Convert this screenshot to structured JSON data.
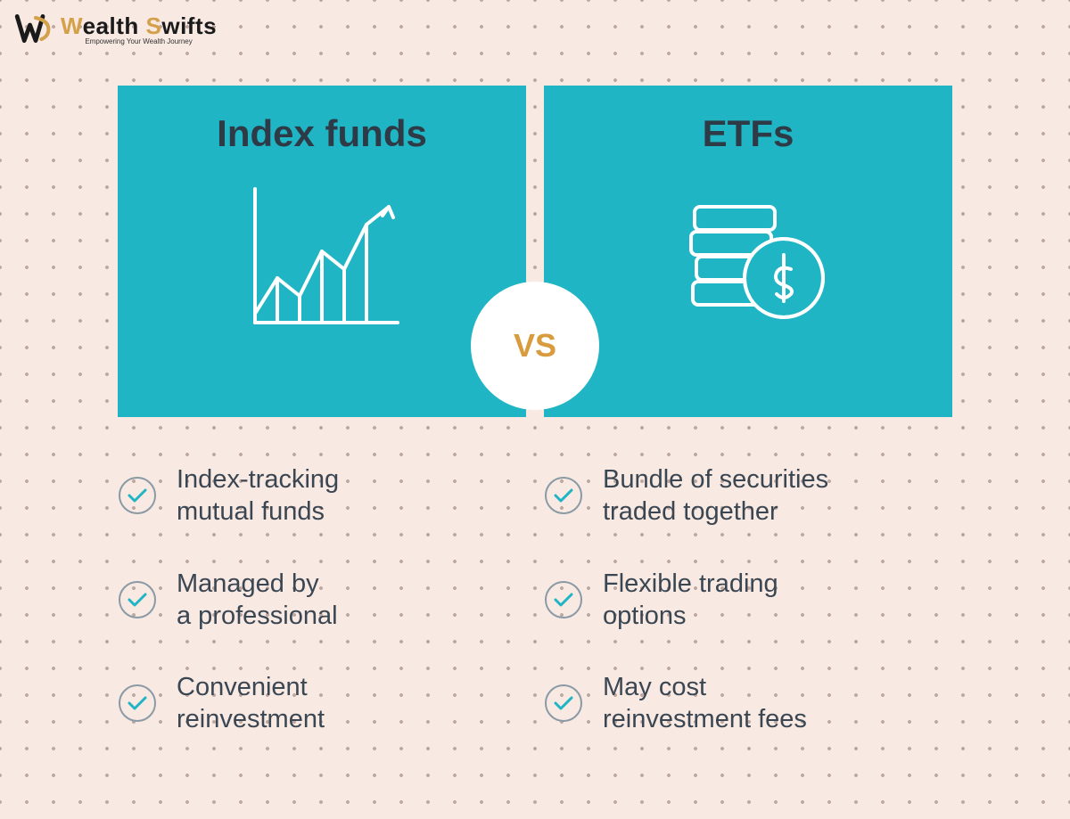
{
  "logo": {
    "brand_word1_first": "W",
    "brand_word1_rest": "ealth ",
    "brand_word2_first": "S",
    "brand_word2_rest": "wifts",
    "tagline": "Empowering Your Wealth Journey",
    "mark_color": "#1a1a1a",
    "accent_color": "#d4a04a"
  },
  "background": {
    "base_color": "#f8e9e3",
    "dot_color": "#c0a9a0"
  },
  "vs": {
    "label": "VS",
    "text_color": "#d89b3e",
    "circle_bg": "#ffffff"
  },
  "left": {
    "title": "Index funds",
    "card_bg": "#1fb5c4",
    "title_color": "#2e3a45",
    "icon_stroke": "#ffffff",
    "features": [
      "Index-tracking\nmutual funds",
      "Managed by\na professional",
      "Convenient\nreinvestment"
    ]
  },
  "right": {
    "title": "ETFs",
    "card_bg": "#1fb5c4",
    "title_color": "#2e3a45",
    "icon_stroke": "#ffffff",
    "features": [
      "Bundle of securities\ntraded together",
      "Flexible trading\noptions",
      "May cost\nreinvestment fees"
    ]
  },
  "feature_style": {
    "text_color": "#3a4652",
    "check_stroke": "#1fb5c4",
    "circle_stroke": "#8a9aa5"
  }
}
